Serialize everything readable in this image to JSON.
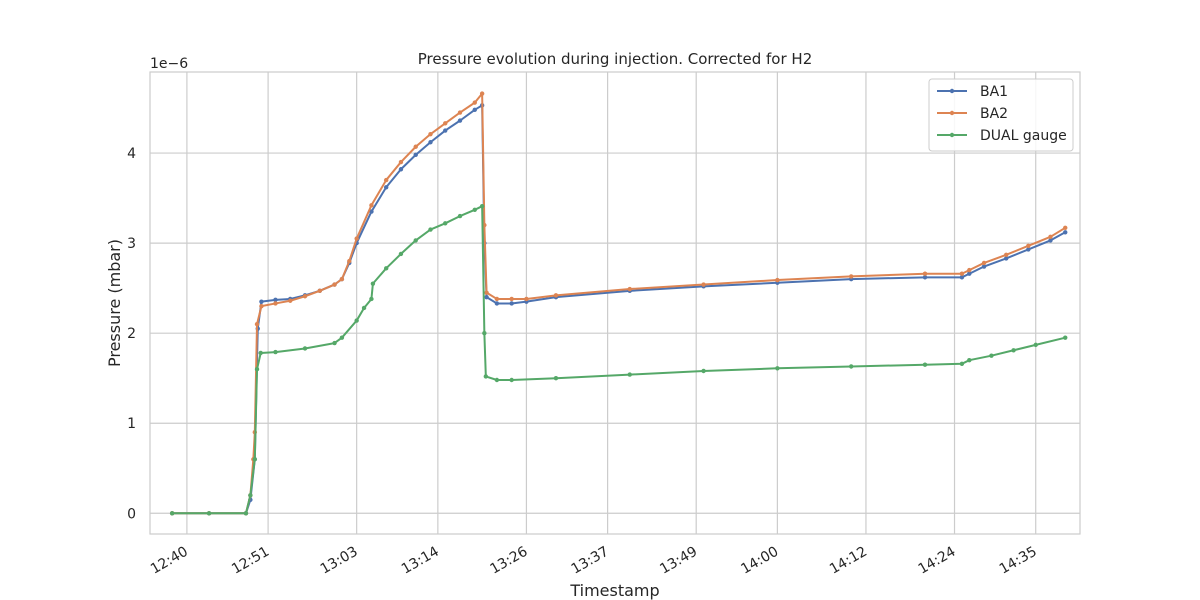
{
  "chart_data": {
    "type": "line",
    "title": "Pressure evolution during injection. Corrected for H2",
    "xlabel": "Timestamp",
    "ylabel": "Pressure (mbar)",
    "y_offset_label": "1e−6",
    "y_scale": 1e-06,
    "ylim": [
      -0.23,
      4.9
    ],
    "xlim": [
      "12:35",
      "14:41"
    ],
    "grid": true,
    "legend_position": "top-right",
    "x_ticks": [
      "12:40",
      "12:51",
      "13:03",
      "13:14",
      "13:26",
      "13:37",
      "13:49",
      "14:00",
      "14:12",
      "14:24",
      "14:35"
    ],
    "y_ticks": [
      "0",
      "1",
      "2",
      "3",
      "4"
    ],
    "series": [
      {
        "name": "BA1",
        "color": "#4c72b0",
        "points": [
          [
            "12:38",
            0
          ],
          [
            "12:43",
            0
          ],
          [
            "12:48",
            0
          ],
          [
            "12:48.6",
            0.15
          ],
          [
            "12:49.2",
            0.6
          ],
          [
            "12:49.6",
            2.05
          ],
          [
            "12:50.1",
            2.35
          ],
          [
            "12:52",
            2.37
          ],
          [
            "12:54",
            2.38
          ],
          [
            "12:56",
            2.42
          ],
          [
            "12:58",
            2.47
          ],
          [
            "13:00",
            2.54
          ],
          [
            "13:01",
            2.6
          ],
          [
            "13:02",
            2.78
          ],
          [
            "13:03",
            3.0
          ],
          [
            "13:05",
            3.35
          ],
          [
            "13:07",
            3.62
          ],
          [
            "13:09",
            3.82
          ],
          [
            "13:11",
            3.98
          ],
          [
            "13:13",
            4.12
          ],
          [
            "13:15",
            4.25
          ],
          [
            "13:17",
            4.36
          ],
          [
            "13:19",
            4.48
          ],
          [
            "13:20",
            4.53
          ],
          [
            "13:20.3",
            3.0
          ],
          [
            "13:20.6",
            2.4
          ],
          [
            "13:22",
            2.33
          ],
          [
            "13:24",
            2.33
          ],
          [
            "13:26",
            2.35
          ],
          [
            "13:30",
            2.4
          ],
          [
            "13:40",
            2.47
          ],
          [
            "13:50",
            2.52
          ],
          [
            "14:00",
            2.56
          ],
          [
            "14:10",
            2.6
          ],
          [
            "14:20",
            2.62
          ],
          [
            "14:25",
            2.62
          ],
          [
            "14:26",
            2.66
          ],
          [
            "14:28",
            2.74
          ],
          [
            "14:31",
            2.83
          ],
          [
            "14:34",
            2.93
          ],
          [
            "14:37",
            3.03
          ],
          [
            "14:39",
            3.12
          ]
        ]
      },
      {
        "name": "BA2",
        "color": "#dd8452",
        "points": [
          [
            "12:38",
            0
          ],
          [
            "12:43",
            0
          ],
          [
            "12:48",
            0
          ],
          [
            "12:48.6",
            0.2
          ],
          [
            "12:49.0",
            0.6
          ],
          [
            "12:49.2",
            0.9
          ],
          [
            "12:49.5",
            2.1
          ],
          [
            "12:50.1",
            2.3
          ],
          [
            "12:52",
            2.33
          ],
          [
            "12:54",
            2.36
          ],
          [
            "12:56",
            2.41
          ],
          [
            "12:58",
            2.47
          ],
          [
            "13:00",
            2.54
          ],
          [
            "13:01",
            2.6
          ],
          [
            "13:02",
            2.8
          ],
          [
            "13:03",
            3.05
          ],
          [
            "13:05",
            3.42
          ],
          [
            "13:07",
            3.7
          ],
          [
            "13:09",
            3.9
          ],
          [
            "13:11",
            4.07
          ],
          [
            "13:13",
            4.21
          ],
          [
            "13:15",
            4.33
          ],
          [
            "13:17",
            4.45
          ],
          [
            "13:19",
            4.56
          ],
          [
            "13:20",
            4.66
          ],
          [
            "13:20.3",
            3.2
          ],
          [
            "13:20.6",
            2.45
          ],
          [
            "13:22",
            2.38
          ],
          [
            "13:24",
            2.38
          ],
          [
            "13:26",
            2.38
          ],
          [
            "13:30",
            2.42
          ],
          [
            "13:40",
            2.49
          ],
          [
            "13:50",
            2.54
          ],
          [
            "14:00",
            2.59
          ],
          [
            "14:10",
            2.63
          ],
          [
            "14:20",
            2.66
          ],
          [
            "14:25",
            2.66
          ],
          [
            "14:26",
            2.7
          ],
          [
            "14:28",
            2.78
          ],
          [
            "14:31",
            2.87
          ],
          [
            "14:34",
            2.97
          ],
          [
            "14:37",
            3.07
          ],
          [
            "14:39",
            3.17
          ]
        ]
      },
      {
        "name": "DUAL gauge",
        "color": "#55a868",
        "points": [
          [
            "12:38",
            0
          ],
          [
            "12:43",
            0
          ],
          [
            "12:48",
            0
          ],
          [
            "12:48.6",
            0.2
          ],
          [
            "12:49.2",
            0.6
          ],
          [
            "12:49.5",
            1.6
          ],
          [
            "12:50",
            1.78
          ],
          [
            "12:52",
            1.79
          ],
          [
            "12:56",
            1.83
          ],
          [
            "13:00",
            1.89
          ],
          [
            "13:01",
            1.95
          ],
          [
            "13:03",
            2.14
          ],
          [
            "13:04",
            2.28
          ],
          [
            "13:05",
            2.38
          ],
          [
            "13:05.2",
            2.55
          ],
          [
            "13:07",
            2.72
          ],
          [
            "13:09",
            2.88
          ],
          [
            "13:11",
            3.03
          ],
          [
            "13:13",
            3.15
          ],
          [
            "13:15",
            3.22
          ],
          [
            "13:17",
            3.3
          ],
          [
            "13:19",
            3.37
          ],
          [
            "13:20",
            3.41
          ],
          [
            "13:20.3",
            2.0
          ],
          [
            "13:20.5",
            1.52
          ],
          [
            "13:22",
            1.48
          ],
          [
            "13:24",
            1.48
          ],
          [
            "13:30",
            1.5
          ],
          [
            "13:40",
            1.54
          ],
          [
            "13:50",
            1.58
          ],
          [
            "14:00",
            1.61
          ],
          [
            "14:10",
            1.63
          ],
          [
            "14:20",
            1.65
          ],
          [
            "14:25",
            1.66
          ],
          [
            "14:26",
            1.7
          ],
          [
            "14:29",
            1.75
          ],
          [
            "14:32",
            1.81
          ],
          [
            "14:35",
            1.87
          ],
          [
            "14:39",
            1.95
          ]
        ]
      }
    ]
  }
}
